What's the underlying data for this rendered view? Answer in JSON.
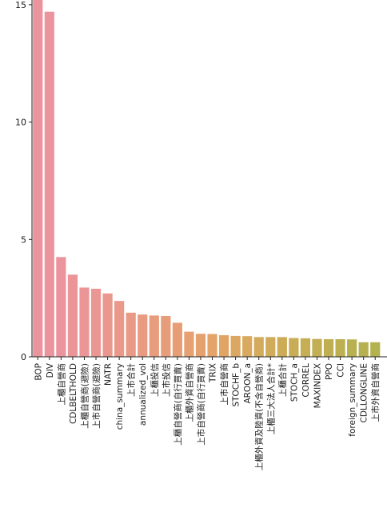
{
  "chart_data": {
    "type": "bar",
    "title": "",
    "xlabel": "",
    "ylabel": "",
    "ylim": [
      0,
      15.2
    ],
    "yticks": [
      0,
      5,
      10,
      15
    ],
    "grid": false,
    "categories": [
      "BOP",
      "DIV",
      "上櫃自營商",
      "CDLBELTHOLD",
      "上櫃自營商(避險)",
      "上市自營商(避險)",
      "NATR",
      "china_summary",
      "上市合計",
      "annualized_vol",
      "上櫃投信",
      "上市投信",
      "上櫃自營商(自行買賣)",
      "上櫃外資自營商",
      "上市自營商(自行買賣)",
      "TRIX",
      "上市自營商",
      "STOCHF_b",
      "AROON_a",
      "上櫃外資及陸資(不含自營商)",
      "上櫃三大法人合計*",
      "上櫃合計",
      "STOCH_a",
      "CORREL",
      "MAXINDEX",
      "PPO",
      "CCI",
      "foreign_summary",
      "CDLLONGLINE",
      "上市外資自營商"
    ],
    "values": [
      15.5,
      14.7,
      4.25,
      3.5,
      2.95,
      2.9,
      2.7,
      2.38,
      1.88,
      1.8,
      1.76,
      1.74,
      1.45,
      1.07,
      0.98,
      0.97,
      0.92,
      0.89,
      0.88,
      0.84,
      0.84,
      0.84,
      0.8,
      0.79,
      0.76,
      0.75,
      0.75,
      0.74,
      0.62,
      0.62
    ],
    "colors": [
      "#ec949e",
      "#ec949e",
      "#ec949e",
      "#eb9599",
      "#eb9596",
      "#ea9692",
      "#ea978e",
      "#ea988a",
      "#e99a86",
      "#e99b82",
      "#e89c7e",
      "#e89d7a",
      "#e79e76",
      "#e6a072",
      "#e5a16d",
      "#e3a369",
      "#e0a565",
      "#dca762",
      "#d8a95f",
      "#d4aa5d",
      "#d0ab5a",
      "#cdac58",
      "#c9ad56",
      "#c5ae54",
      "#c2ae53",
      "#bfaf52",
      "#bcb051",
      "#b9b050",
      "#b6b150",
      "#b4b150"
    ]
  }
}
